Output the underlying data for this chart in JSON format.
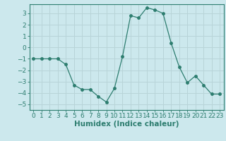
{
  "x": [
    0,
    1,
    2,
    3,
    4,
    5,
    6,
    7,
    8,
    9,
    10,
    11,
    12,
    13,
    14,
    15,
    16,
    17,
    18,
    19,
    20,
    21,
    22,
    23
  ],
  "y": [
    -1,
    -1,
    -1,
    -1,
    -1.5,
    -3.3,
    -3.7,
    -3.7,
    -4.3,
    -4.8,
    -3.6,
    -0.8,
    2.8,
    2.6,
    3.5,
    3.3,
    3.0,
    0.4,
    -1.7,
    -3.1,
    -2.5,
    -3.3,
    -4.1,
    -4.1
  ],
  "xlabel": "Humidex (Indice chaleur)",
  "xlim": [
    -0.5,
    23.5
  ],
  "ylim": [
    -5.5,
    3.8
  ],
  "yticks": [
    -5,
    -4,
    -3,
    -2,
    -1,
    0,
    1,
    2,
    3
  ],
  "xticks": [
    0,
    1,
    2,
    3,
    4,
    5,
    6,
    7,
    8,
    9,
    10,
    11,
    12,
    13,
    14,
    15,
    16,
    17,
    18,
    19,
    20,
    21,
    22,
    23
  ],
  "line_color": "#2d7d6f",
  "marker_size": 2.5,
  "bg_color": "#cce8ed",
  "grid_color": "#b8d4d8",
  "axes_color": "#2d7d6f",
  "tick_label_color": "#2d7d6f",
  "label_color": "#2d7d6f",
  "font_size_tick": 6.5,
  "font_size_label": 7.5
}
